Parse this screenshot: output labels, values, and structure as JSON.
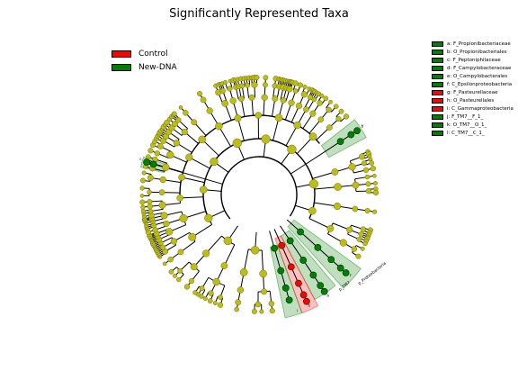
{
  "title": "Significantly Represented Taxa",
  "colors": {
    "control": "#ff0000",
    "newdna": "#008000",
    "node_default": "#bdbd17",
    "node_stroke": "#555500",
    "branch": "#000000"
  },
  "legend": [
    {
      "label": "Control",
      "color": "#ff0000"
    },
    {
      "label": "New-DNA",
      "color": "#008000"
    }
  ],
  "clades": [
    {
      "text": "a: F_Propionibacteriaceae",
      "group": "newdna"
    },
    {
      "text": "b: O_Propionibacteriales",
      "group": "newdna"
    },
    {
      "text": "c: F_Peptoniphilaceae",
      "group": "newdna"
    },
    {
      "text": "d: F_Campylobacteraceae",
      "group": "newdna"
    },
    {
      "text": "e: O_Campylobacterales",
      "group": "newdna"
    },
    {
      "text": "f: C_Epsilonproteobacteria",
      "group": "newdna"
    },
    {
      "text": "g: F_Pasteurellaceae",
      "group": "control"
    },
    {
      "text": "h: O_Pasteurellales",
      "group": "control"
    },
    {
      "text": "i: C_Gammaproteobacteria",
      "group": "control"
    },
    {
      "text": "j: F_TM7__F_1_",
      "group": "newdna"
    },
    {
      "text": "k: O_TM7__O_1_",
      "group": "newdna"
    },
    {
      "text": "l: C_TM7__C_1_",
      "group": "newdna"
    }
  ],
  "sector_labels": {
    "phylum_tm7": "p_TM7",
    "phylum_proteo": "p_Proteobacteria"
  }
}
